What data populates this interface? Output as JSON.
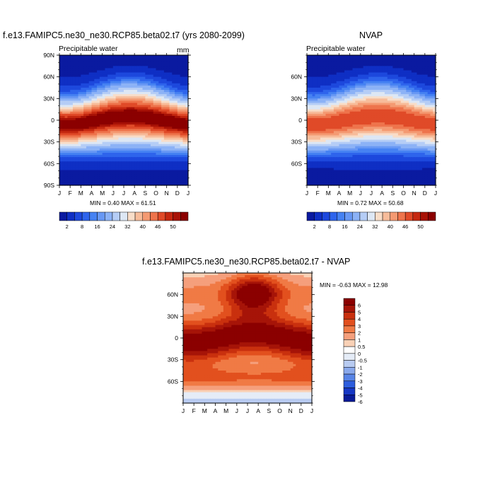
{
  "chart_data": [
    {
      "type": "heatmap",
      "title": "f.e13.FAMIPC5.ne30_ne30.RCP85.beta02.t7 (yrs 2080-2099)",
      "subtitle": "Precipitable water",
      "units": "mm",
      "x_ticks": [
        "J",
        "F",
        "M",
        "A",
        "M",
        "J",
        "J",
        "A",
        "S",
        "O",
        "N",
        "D",
        "J"
      ],
      "y_ticks": [
        "90N",
        "60N",
        "30N",
        "0",
        "30S",
        "60S",
        "90S"
      ],
      "y_tick_values": [
        90,
        60,
        30,
        0,
        -30,
        -60,
        -90
      ],
      "stats": "MIN =   0.40 MAX =  61.51",
      "colorbar_labels": [
        "2",
        "8",
        "16",
        "24",
        "32",
        "40",
        "46",
        "50"
      ],
      "colorbar_levels": [
        2,
        4,
        6,
        8,
        12,
        16,
        20,
        24,
        28,
        32,
        36,
        40,
        44,
        46,
        48,
        50
      ],
      "peak": 61.51,
      "low": 0.4
    },
    {
      "type": "heatmap",
      "title": "NVAP",
      "subtitle": "Precipitable water",
      "x_ticks": [
        "J",
        "F",
        "M",
        "A",
        "M",
        "J",
        "J",
        "A",
        "S",
        "O",
        "N",
        "D",
        "J"
      ],
      "y_ticks": [
        "60N",
        "30N",
        "0",
        "30S",
        "60S"
      ],
      "y_tick_values": [
        60,
        30,
        0,
        -30,
        -60
      ],
      "stats": "MIN =   0.72 MAX =  50.68",
      "colorbar_labels": [
        "2",
        "8",
        "16",
        "24",
        "32",
        "40",
        "46",
        "50"
      ],
      "colorbar_levels": [
        2,
        4,
        6,
        8,
        12,
        16,
        20,
        24,
        28,
        32,
        36,
        40,
        44,
        46,
        48,
        50
      ],
      "peak": 50.68,
      "low": 0.72
    },
    {
      "type": "heatmap",
      "title": "f.e13.FAMIPC5.ne30_ne30.RCP85.beta02.t7 - NVAP",
      "x_ticks": [
        "J",
        "F",
        "M",
        "A",
        "M",
        "J",
        "J",
        "A",
        "S",
        "O",
        "N",
        "D",
        "J"
      ],
      "y_ticks": [
        "60N",
        "30N",
        "0",
        "30S",
        "60S"
      ],
      "y_tick_values": [
        60,
        30,
        0,
        -30,
        -60
      ],
      "stats": "MIN =  -0.63 MAX =  12.98",
      "colorbar_labels": [
        "6",
        "5",
        "4",
        "3",
        "2",
        "1",
        "0.5",
        "0",
        "-0.5",
        "-1",
        "-2",
        "-3",
        "-4",
        "-5",
        "-6"
      ],
      "colorbar_levels": [
        6,
        5,
        4,
        3,
        2,
        1,
        0.5,
        0,
        -0.5,
        -1,
        -2,
        -3,
        -4,
        -5,
        -6
      ]
    }
  ],
  "palette": {
    "sequential": [
      "#0a1aa0",
      "#0f2fc4",
      "#1d48dd",
      "#2e64ec",
      "#4682f2",
      "#6898f4",
      "#8cb2f6",
      "#b5cdf6",
      "#dde7f4",
      "#f8ddc8",
      "#f7bc9a",
      "#f49a72",
      "#ee744c",
      "#e04a28",
      "#c52810",
      "#a81206",
      "#8b0000"
    ],
    "diverging": [
      "#8b0000",
      "#a61408",
      "#c9300e",
      "#e2501e",
      "#f07a45",
      "#f59f7c",
      "#f9d1b6",
      "#ffffff",
      "#e5ecf7",
      "#b8cbf1",
      "#8aa9ec",
      "#5884e6",
      "#2d5ddd",
      "#1637c4",
      "#091b98"
    ]
  }
}
